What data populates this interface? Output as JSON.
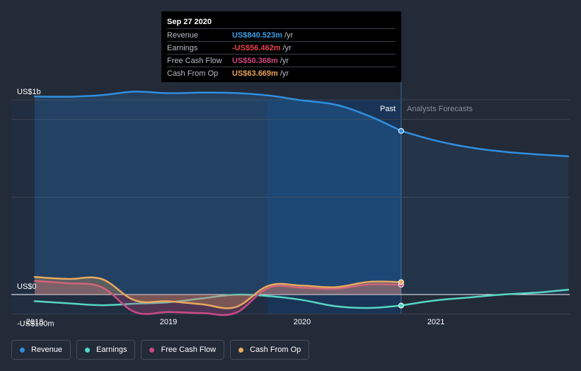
{
  "tooltip": {
    "date": "Sep 27 2020",
    "rows": [
      {
        "name": "Revenue",
        "value": "US$840.523m",
        "unit": "/yr",
        "color": "#3b9ee8"
      },
      {
        "name": "Earnings",
        "value": "-US$56.462m",
        "unit": "/yr",
        "color": "#e8434b"
      },
      {
        "name": "Free Cash Flow",
        "value": "US$50.368m",
        "unit": "/yr",
        "color": "#d0457f"
      },
      {
        "name": "Cash From Op",
        "value": "US$63.669m",
        "unit": "/yr",
        "color": "#e8a15a"
      }
    ]
  },
  "regions": {
    "past": "Past",
    "forecast": "Analysts Forecasts"
  },
  "legend": [
    {
      "label": "Revenue",
      "color": "#2f8fe0"
    },
    {
      "label": "Earnings",
      "color": "#56d6c4"
    },
    {
      "label": "Free Cash Flow",
      "color": "#c94a86"
    },
    {
      "label": "Cash From Op",
      "color": "#e8a95e"
    }
  ],
  "chart_data": {
    "type": "line",
    "x_ticks": [
      2018,
      2019,
      2020,
      2021
    ],
    "y_ticks": [
      {
        "value": 1000,
        "label": "US$1b"
      },
      {
        "value": 0,
        "label": "US$0"
      },
      {
        "value": -100,
        "label": "-US$100m"
      }
    ],
    "ylim": [
      -100,
      1000
    ],
    "xlim": [
      2017.98,
      2021.99
    ],
    "past_end": 2020.74,
    "highlight_start": 2019.74,
    "unit": "US$ millions",
    "series": [
      {
        "name": "Revenue",
        "color": "#2f8fe0",
        "fill": true,
        "x": [
          2018.0,
          2018.25,
          2018.5,
          2018.75,
          2019.0,
          2019.25,
          2019.5,
          2019.75,
          2020.0,
          2020.25,
          2020.5,
          2020.74
        ],
        "y": [
          1017,
          1016,
          1024,
          1042,
          1034,
          1037,
          1035,
          1022,
          997,
          975,
          917,
          840.5
        ],
        "forecast_x": [
          2020.74,
          2021.0,
          2021.25,
          2021.5,
          2021.75,
          2021.99
        ],
        "forecast_y": [
          840.5,
          790,
          756,
          734,
          720,
          710
        ]
      },
      {
        "name": "Earnings",
        "color": "#56d6c4",
        "fill": false,
        "x": [
          2018.0,
          2018.25,
          2018.5,
          2018.75,
          2019.0,
          2019.25,
          2019.5,
          2019.75,
          2020.0,
          2020.25,
          2020.5,
          2020.74
        ],
        "y": [
          -34,
          -45,
          -55,
          -47,
          -40,
          -20,
          -1,
          -8,
          -28,
          -60,
          -69,
          -56.5
        ],
        "forecast_x": [
          2020.74,
          2021.0,
          2021.25,
          2021.5,
          2021.75,
          2021.99
        ],
        "forecast_y": [
          -56.5,
          -30,
          -15,
          0,
          10,
          25
        ]
      },
      {
        "name": "Free Cash Flow",
        "color": "#c94a86",
        "fill": true,
        "x": [
          2018.0,
          2018.25,
          2018.5,
          2018.75,
          2019.0,
          2019.25,
          2019.5,
          2019.75,
          2020.0,
          2020.25,
          2020.5,
          2020.74
        ],
        "y": [
          70,
          58,
          38,
          -90,
          -90,
          -95,
          -95,
          35,
          35,
          30,
          52,
          50.4
        ]
      },
      {
        "name": "Cash From Op",
        "color": "#e8a95e",
        "fill": true,
        "x": [
          2018.0,
          2018.25,
          2018.5,
          2018.75,
          2019.0,
          2019.25,
          2019.5,
          2019.75,
          2020.0,
          2020.25,
          2020.5,
          2020.74
        ],
        "y": [
          90,
          80,
          80,
          -30,
          -35,
          -50,
          -65,
          46,
          46,
          38,
          65,
          63.7
        ]
      }
    ]
  }
}
